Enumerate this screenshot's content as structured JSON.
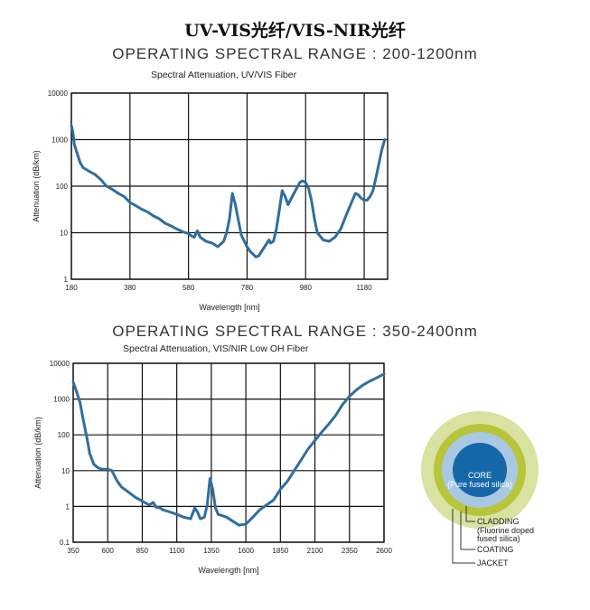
{
  "main_title": "UV-VIS光纤/VIS-NIR光纤",
  "chart_data": [
    {
      "type": "line",
      "section_title": "OPERATING SPECTRAL RANGE : 200-1200nm",
      "title": "Spectral Attenuation, UV/VIS Fiber",
      "xlabel": "Wavelength [nm]",
      "ylabel": "Attenuation (dB/km)",
      "xlim": [
        180,
        1260
      ],
      "ylim": [
        1,
        10000
      ],
      "yscale": "log",
      "grid": true,
      "xticks": [
        180,
        380,
        580,
        780,
        980,
        1180
      ],
      "xtick_labels": [
        "180",
        "380",
        "580",
        "780",
        "980",
        "1180"
      ],
      "yticks": [
        1,
        10,
        100,
        1000,
        10000
      ],
      "ytick_labels": [
        "1",
        "10",
        "100",
        "1000",
        "10000"
      ],
      "line_color": "#2f6e9e",
      "series": [
        {
          "x": [
            180,
            185,
            190,
            200,
            210,
            220,
            240,
            260,
            280,
            300,
            320,
            340,
            360,
            380,
            400,
            420,
            440,
            460,
            480,
            500,
            520,
            540,
            560,
            580,
            590,
            600,
            610,
            620,
            640,
            660,
            670,
            680,
            700,
            710,
            720,
            730,
            740,
            760,
            780,
            790,
            800,
            810,
            820,
            840,
            855,
            860,
            870,
            880,
            890,
            900,
            910,
            920,
            940,
            960,
            970,
            980,
            990,
            1000,
            1010,
            1020,
            1040,
            1060,
            1080,
            1100,
            1120,
            1140,
            1150,
            1160,
            1170,
            1180,
            1190,
            1200,
            1210,
            1220,
            1230,
            1240,
            1250
          ],
          "y": [
            2000,
            1500,
            800,
            500,
            320,
            250,
            210,
            180,
            140,
            100,
            85,
            70,
            60,
            45,
            38,
            32,
            28,
            23,
            20,
            16,
            14,
            12,
            10.5,
            9.5,
            8.5,
            8,
            11,
            8,
            6.5,
            6,
            5.5,
            5,
            6.5,
            10,
            20,
            70,
            40,
            9,
            5,
            4,
            3.5,
            3,
            3.2,
            5,
            7,
            6,
            6.5,
            12,
            30,
            80,
            60,
            40,
            70,
            120,
            130,
            120,
            90,
            50,
            20,
            10,
            7,
            6.5,
            8,
            12,
            25,
            50,
            70,
            65,
            55,
            50,
            50,
            60,
            80,
            150,
            300,
            600,
            1000
          ]
        }
      ]
    },
    {
      "type": "line",
      "section_title": "OPERATING SPECTRAL RANGE : 350-2400nm",
      "title": "Spectral Attenuation, VIS/NIR Low  OH  Fiber",
      "xlabel": "Wavelength [nm]",
      "ylabel": "Attenuation (dB/km)",
      "xlim": [
        350,
        2600
      ],
      "ylim": [
        0.1,
        10000
      ],
      "yscale": "log",
      "grid": true,
      "xticks": [
        350,
        600,
        850,
        1100,
        1350,
        1600,
        1850,
        2100,
        2350,
        2600
      ],
      "xtick_labels": [
        "350",
        "600",
        "850",
        "1100",
        "1350",
        "1600",
        "1850",
        "2100",
        "2350",
        "2600"
      ],
      "yticks": [
        0.1,
        1,
        10,
        100,
        1000,
        10000
      ],
      "ytick_labels": [
        "0.1",
        "1",
        "10",
        "100",
        "1000",
        "10000"
      ],
      "line_color": "#2f6e9e",
      "series": [
        {
          "x": [
            350,
            370,
            400,
            420,
            450,
            470,
            500,
            530,
            560,
            600,
            630,
            650,
            670,
            700,
            750,
            800,
            850,
            900,
            930,
            950,
            980,
            1000,
            1050,
            1100,
            1150,
            1200,
            1230,
            1250,
            1270,
            1300,
            1320,
            1340,
            1360,
            1380,
            1400,
            1430,
            1460,
            1500,
            1550,
            1600,
            1650,
            1700,
            1800,
            1850,
            1900,
            1950,
            2000,
            2050,
            2100,
            2150,
            2200,
            2250,
            2300,
            2350,
            2400,
            2450,
            2500,
            2550,
            2600
          ],
          "y": [
            3000,
            1800,
            800,
            300,
            80,
            30,
            15,
            12,
            11,
            11,
            10,
            7,
            5,
            3.5,
            2.5,
            1.8,
            1.4,
            1.1,
            1.3,
            0.95,
            0.9,
            0.8,
            0.7,
            0.6,
            0.5,
            0.45,
            0.9,
            0.7,
            0.45,
            0.5,
            1.1,
            6,
            3,
            0.9,
            0.6,
            0.55,
            0.5,
            0.4,
            0.3,
            0.32,
            0.5,
            0.8,
            1.5,
            3,
            5,
            10,
            20,
            40,
            70,
            120,
            200,
            350,
            700,
            1200,
            1800,
            2500,
            3200,
            4000,
            5000
          ]
        }
      ]
    }
  ],
  "fiber_diagram": {
    "core_label": "CORE",
    "core_sublabel": "(Pure fused silica)",
    "cladding_label": "CLADDING",
    "cladding_sub1": "(Fluorine doped",
    "cladding_sub2": "fused silica)",
    "coating_label": "COATING",
    "jacket_label": "JACKET",
    "colors": {
      "jacket": "#d9e2a0",
      "coating": "#b8c43a",
      "cladding": "#a9c8e4",
      "core": "#1667a8"
    }
  }
}
